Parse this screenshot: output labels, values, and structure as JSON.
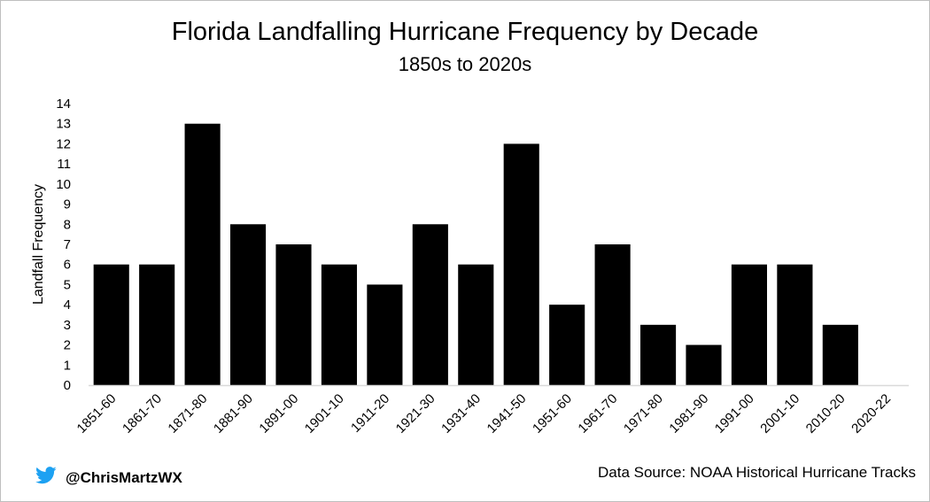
{
  "chart_data": {
    "type": "bar",
    "title": "Florida Landfalling Hurricane Frequency by Decade",
    "subtitle": "1850s to 2020s",
    "xlabel": "",
    "ylabel": "Landfall Frequency",
    "categories": [
      "1851-60",
      "1861-70",
      "1871-80",
      "1881-90",
      "1891-00",
      "1901-10",
      "1911-20",
      "1921-30",
      "1931-40",
      "1941-50",
      "1951-60",
      "1961-70",
      "1971-80",
      "1981-90",
      "1991-00",
      "2001-10",
      "2010-20",
      "2020-22"
    ],
    "values": [
      6,
      6,
      13,
      8,
      7,
      6,
      5,
      8,
      6,
      12,
      4,
      7,
      3,
      2,
      6,
      6,
      3,
      0
    ],
    "ylim": [
      0,
      14
    ],
    "yticks": [
      0,
      1,
      2,
      3,
      4,
      5,
      6,
      7,
      8,
      9,
      10,
      11,
      12,
      13,
      14
    ],
    "grid": false,
    "bar_color": "#000000"
  },
  "footer": {
    "handle": "@ChrisMartzWX",
    "source": "Data Source: NOAA Historical Hurricane Tracks",
    "twitter_color": "#1DA1F2"
  },
  "icons": {
    "handle_icon": "twitter-bird-icon"
  }
}
